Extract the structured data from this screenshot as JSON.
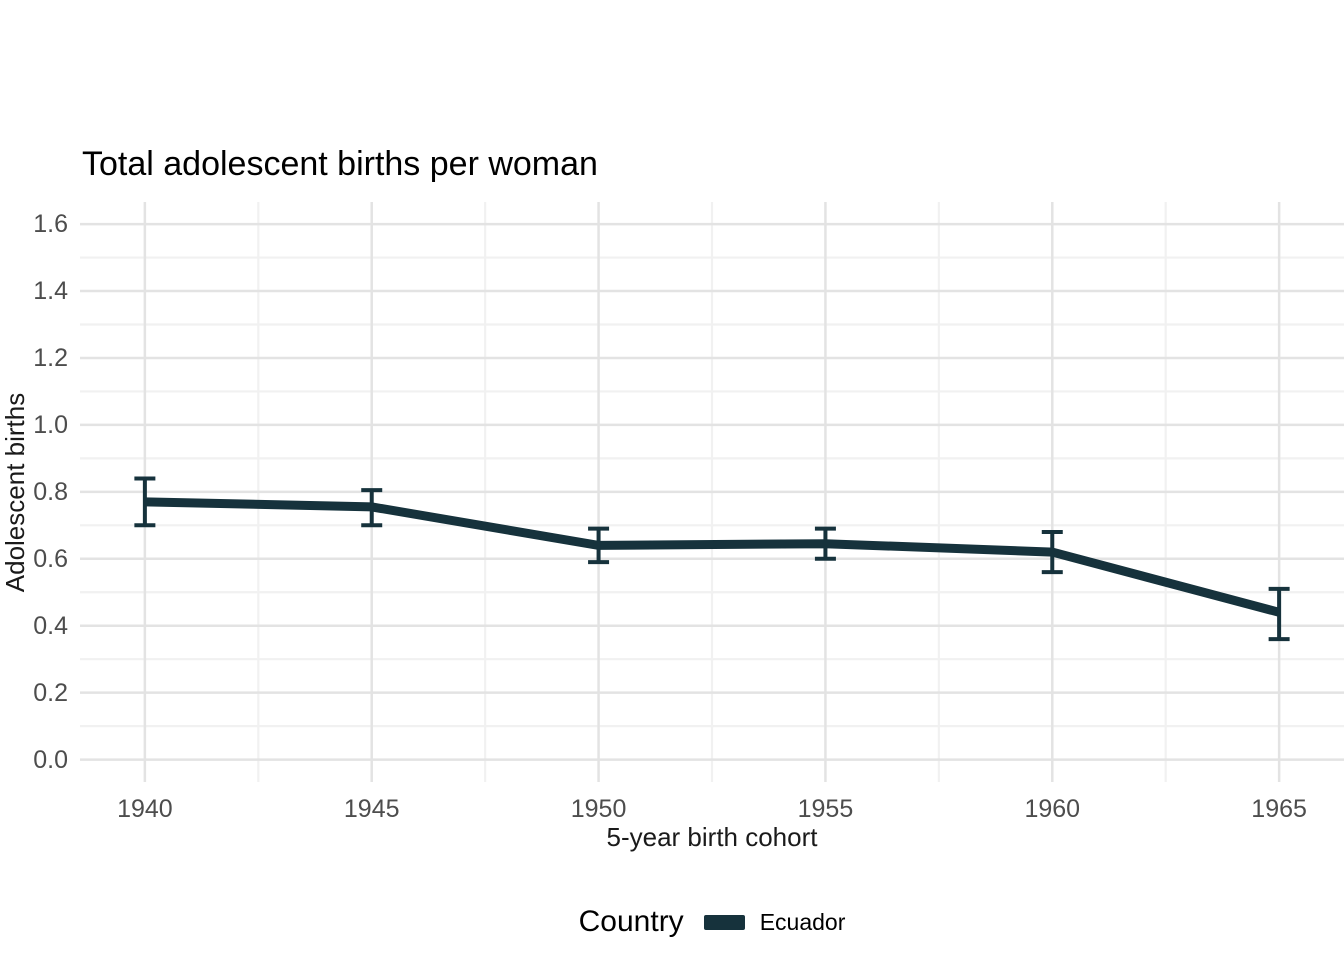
{
  "chart_data": {
    "type": "line",
    "title": "Total adolescent births per woman",
    "xlabel": "5-year birth cohort",
    "ylabel": "Adolescent births",
    "x": [
      1940,
      1945,
      1950,
      1955,
      1960,
      1965
    ],
    "xticks": [
      "1940",
      "1945",
      "1950",
      "1955",
      "1960",
      "1965"
    ],
    "yticks": [
      0.0,
      0.2,
      0.4,
      0.6,
      0.8,
      1.0,
      1.2,
      1.4,
      1.6
    ],
    "xlim": [
      1938.57,
      1966.43
    ],
    "ylim": [
      -0.067,
      1.666
    ],
    "grid": {
      "major": true,
      "minor": true,
      "major_color": "#e3e3e3",
      "minor_color": "#f1f1f1"
    },
    "series": [
      {
        "name": "Ecuador",
        "color": "#16323c",
        "values": [
          0.77,
          0.755,
          0.64,
          0.645,
          0.62,
          0.44
        ],
        "ci_low": [
          0.7,
          0.7,
          0.59,
          0.6,
          0.56,
          0.36
        ],
        "ci_high": [
          0.84,
          0.805,
          0.69,
          0.69,
          0.68,
          0.51
        ]
      }
    ],
    "legend": {
      "title": "Country",
      "position": "bottom",
      "entries": [
        {
          "label": "Ecuador",
          "color": "#16323c"
        }
      ]
    }
  }
}
